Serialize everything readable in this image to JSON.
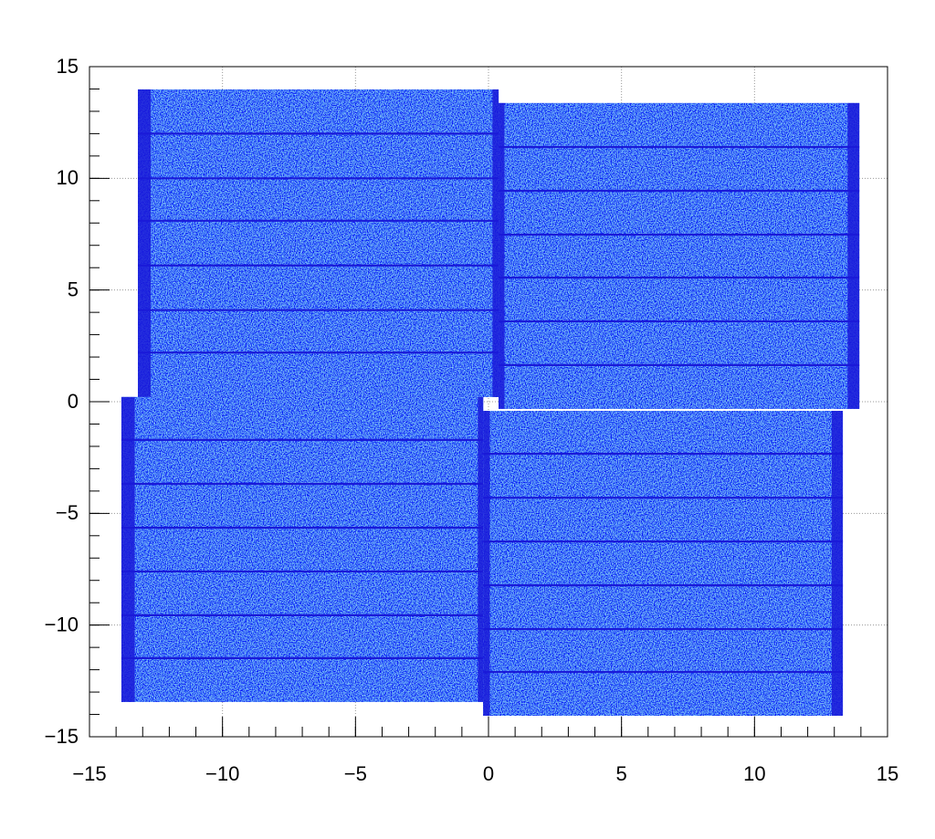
{
  "chart_data": {
    "type": "hitmap",
    "color": "#2448f2",
    "line_color": "#1a1ad8",
    "xlim": [
      -15,
      15
    ],
    "ylim": [
      -15,
      15
    ],
    "xticks": [
      {
        "value": -15,
        "label": "−15"
      },
      {
        "value": -10,
        "label": "−10"
      },
      {
        "value": -5,
        "label": "−5"
      },
      0,
      5,
      10,
      15
    ],
    "yticks": [
      {
        "value": -15,
        "label": "−15"
      },
      {
        "value": -10,
        "label": "−10"
      },
      {
        "value": -5,
        "label": "−5"
      },
      0,
      5,
      10,
      15
    ],
    "grid": true,
    "regions": [
      {
        "x": [
          -13.18,
          0.38
        ],
        "y": [
          0.21,
          13.98
        ],
        "strips": [
          [
            -13.18,
            -12.7
          ],
          [
            0.15,
            0.38
          ]
        ],
        "lines": [
          12.0,
          10.0,
          8.1,
          6.1,
          4.1,
          2.2
        ]
      },
      {
        "x": [
          0.38,
          13.94
        ],
        "y": [
          -0.32,
          13.37
        ],
        "strips": [
          [
            0.38,
            0.6
          ],
          [
            13.5,
            13.94
          ]
        ],
        "lines": [
          11.4,
          9.44,
          7.48,
          5.56,
          3.6,
          1.64
        ]
      },
      {
        "x": [
          -13.8,
          -0.2
        ],
        "y": [
          -13.44,
          0.21
        ],
        "strips": [
          [
            -13.8,
            -13.3
          ],
          [
            -0.4,
            -0.2
          ]
        ],
        "lines": [
          -1.71,
          -3.68,
          -5.64,
          -7.6,
          -9.56,
          -11.48
        ]
      },
      {
        "x": [
          -0.2,
          13.32
        ],
        "y": [
          -14.06,
          -0.41
        ],
        "strips": [
          [
            -0.2,
            0.05
          ],
          [
            12.9,
            13.32
          ]
        ],
        "lines": [
          -2.33,
          -4.3,
          -6.26,
          -8.22,
          -10.18,
          -12.1
        ]
      }
    ]
  }
}
